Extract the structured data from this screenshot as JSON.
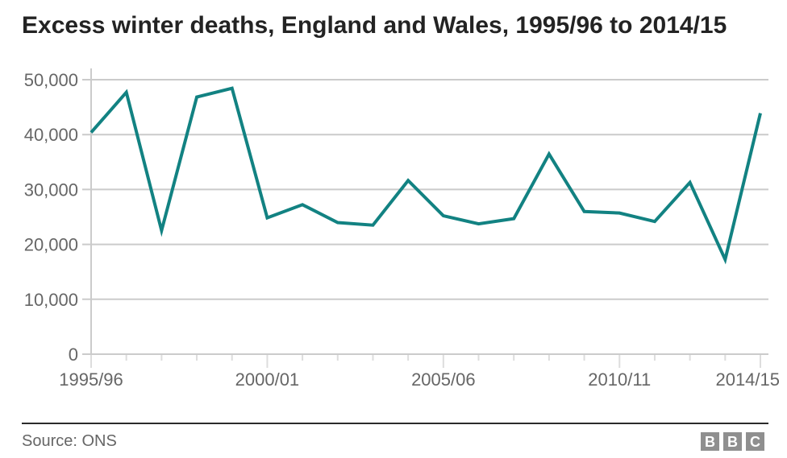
{
  "title": "Excess winter deaths, England and Wales, 1995/96 to 2014/15",
  "footer": {
    "source": "Source: ONS",
    "logo_letters": [
      "B",
      "B",
      "C"
    ]
  },
  "colors": {
    "line": "#128282",
    "grid": "#cbcbcb",
    "tick": "#dddddd",
    "axis_text": "#666666",
    "title_text": "#232323",
    "divider": "#2b2b2b",
    "logo_bg": "#8f8f8f",
    "logo_text": "#ffffff",
    "background": "#ffffff"
  },
  "chart_data": {
    "type": "line",
    "title": "Excess winter deaths, England and Wales, 1995/96 to 2014/15",
    "series_name": "Excess winter deaths",
    "source": "ONS",
    "x": [
      "1995/96",
      "1996/97",
      "1997/98",
      "1998/99",
      "1999/00",
      "2000/01",
      "2001/02",
      "2002/03",
      "2003/04",
      "2004/05",
      "2005/06",
      "2006/07",
      "2007/08",
      "2008/09",
      "2009/10",
      "2010/11",
      "2011/12",
      "2012/13",
      "2013/14",
      "2014/15"
    ],
    "values": [
      40380,
      47700,
      22520,
      46840,
      48440,
      24840,
      27230,
      23970,
      23500,
      31640,
      25210,
      23740,
      24690,
      36450,
      25990,
      25710,
      24170,
      31280,
      17250,
      43900
    ],
    "ylim": [
      0,
      50000
    ],
    "ytick_step": 10000,
    "ytick_labels": [
      "0",
      "10,000",
      "20,000",
      "30,000",
      "40,000",
      "50,000"
    ],
    "xticks_visible": [
      "1995/96",
      "2000/01",
      "2005/06",
      "2010/11",
      "2014/15"
    ],
    "xlabel": "",
    "ylabel": "",
    "grid": "horizontal",
    "legend": "none"
  }
}
